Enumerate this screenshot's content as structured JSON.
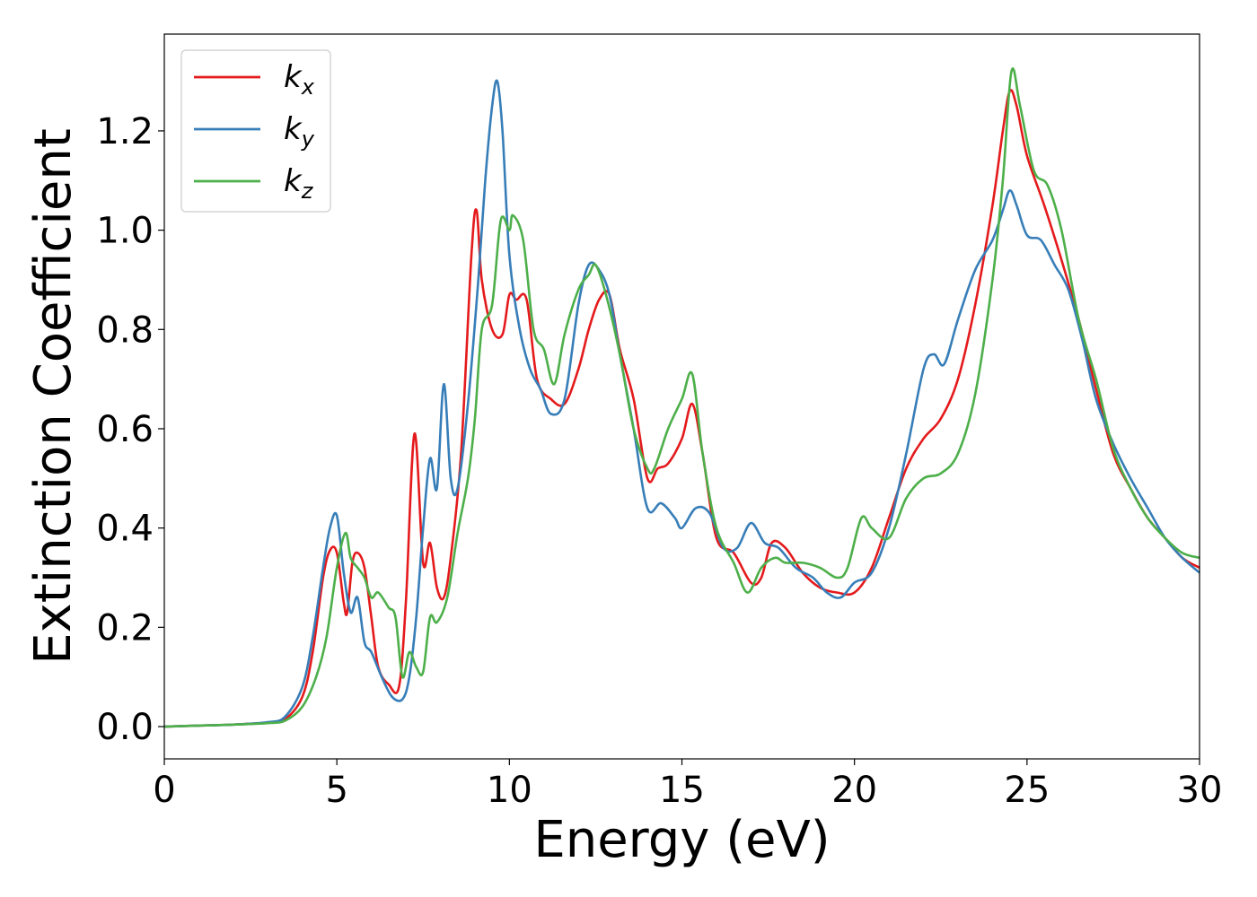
{
  "chart_data": {
    "type": "line",
    "xlabel": "Energy (eV)",
    "ylabel": "Extinction Coefficient",
    "xlim": [
      0,
      30
    ],
    "ylim": [
      -0.065,
      1.395
    ],
    "xticks": [
      0,
      5,
      10,
      15,
      20,
      25,
      30
    ],
    "xtick_labels": [
      "0",
      "5",
      "10",
      "15",
      "20",
      "25",
      "30"
    ],
    "yticks": [
      0.0,
      0.2,
      0.4,
      0.6,
      0.8,
      1.0,
      1.2
    ],
    "ytick_labels": [
      "0.0",
      "0.2",
      "0.4",
      "0.6",
      "0.8",
      "1.0",
      "1.2"
    ],
    "grid": false,
    "legend_position": "top-left",
    "series": [
      {
        "name": "k_x",
        "legend_base": "k",
        "legend_sub": "x",
        "color": "#e41a1c",
        "x": [
          0,
          1,
          2,
          3,
          3.5,
          4.0,
          4.3,
          4.6,
          4.8,
          5.0,
          5.2,
          5.3,
          5.45,
          5.6,
          5.8,
          6.0,
          6.2,
          6.5,
          6.8,
          7.0,
          7.25,
          7.5,
          7.7,
          7.9,
          8.1,
          8.3,
          8.6,
          8.9,
          9.05,
          9.2,
          9.5,
          9.8,
          10.0,
          10.2,
          10.5,
          10.8,
          11.2,
          11.6,
          12.0,
          12.3,
          12.6,
          12.9,
          13.2,
          13.6,
          14.0,
          14.3,
          14.6,
          15.0,
          15.3,
          15.6,
          16.0,
          16.5,
          17.0,
          17.3,
          17.6,
          18.0,
          18.5,
          19.0,
          19.5,
          20.0,
          20.5,
          21.0,
          21.5,
          22.0,
          22.5,
          23.0,
          23.5,
          24.0,
          24.3,
          24.5,
          24.7,
          25.0,
          25.5,
          26.0,
          26.5,
          27.0,
          27.5,
          28.0,
          28.5,
          29.0,
          29.5,
          30.0
        ],
        "y": [
          0,
          0.002,
          0.004,
          0.008,
          0.015,
          0.06,
          0.15,
          0.3,
          0.355,
          0.35,
          0.25,
          0.23,
          0.33,
          0.35,
          0.32,
          0.22,
          0.12,
          0.085,
          0.08,
          0.25,
          0.59,
          0.33,
          0.37,
          0.28,
          0.26,
          0.34,
          0.55,
          0.95,
          1.04,
          0.9,
          0.8,
          0.79,
          0.87,
          0.86,
          0.86,
          0.7,
          0.66,
          0.65,
          0.72,
          0.8,
          0.86,
          0.87,
          0.76,
          0.66,
          0.5,
          0.52,
          0.53,
          0.58,
          0.65,
          0.55,
          0.38,
          0.35,
          0.29,
          0.3,
          0.37,
          0.36,
          0.31,
          0.28,
          0.27,
          0.27,
          0.32,
          0.42,
          0.52,
          0.58,
          0.62,
          0.7,
          0.85,
          1.05,
          1.2,
          1.28,
          1.25,
          1.15,
          1.05,
          0.94,
          0.82,
          0.68,
          0.55,
          0.48,
          0.42,
          0.38,
          0.34,
          0.32
        ]
      },
      {
        "name": "k_y",
        "legend_base": "k",
        "legend_sub": "y",
        "color": "#377eb8",
        "x": [
          0,
          1,
          2,
          3,
          3.5,
          4.0,
          4.3,
          4.6,
          4.8,
          5.0,
          5.2,
          5.4,
          5.6,
          5.8,
          6.0,
          6.3,
          6.6,
          6.9,
          7.1,
          7.3,
          7.5,
          7.7,
          7.9,
          8.1,
          8.3,
          8.5,
          8.8,
          9.1,
          9.3,
          9.5,
          9.65,
          9.8,
          10.0,
          10.3,
          10.6,
          10.9,
          11.2,
          11.6,
          12.0,
          12.3,
          12.6,
          12.9,
          13.2,
          13.6,
          14.0,
          14.4,
          14.8,
          15.0,
          15.4,
          15.8,
          16.2,
          16.6,
          17.0,
          17.4,
          17.8,
          18.3,
          18.8,
          19.2,
          19.6,
          20.0,
          20.5,
          21.0,
          21.5,
          22.0,
          22.3,
          22.6,
          23.0,
          23.5,
          24.0,
          24.3,
          24.5,
          24.7,
          25.0,
          25.4,
          25.8,
          26.2,
          26.6,
          27.0,
          27.5,
          28.0,
          28.5,
          29.0,
          29.5,
          30.0
        ],
        "y": [
          0,
          0.002,
          0.004,
          0.009,
          0.02,
          0.08,
          0.18,
          0.32,
          0.4,
          0.425,
          0.31,
          0.23,
          0.26,
          0.17,
          0.15,
          0.1,
          0.06,
          0.055,
          0.1,
          0.22,
          0.4,
          0.54,
          0.48,
          0.69,
          0.5,
          0.48,
          0.65,
          0.9,
          1.1,
          1.25,
          1.3,
          1.2,
          0.95,
          0.8,
          0.72,
          0.68,
          0.63,
          0.66,
          0.85,
          0.93,
          0.92,
          0.87,
          0.75,
          0.6,
          0.44,
          0.45,
          0.42,
          0.4,
          0.44,
          0.43,
          0.36,
          0.36,
          0.41,
          0.37,
          0.36,
          0.32,
          0.3,
          0.27,
          0.26,
          0.29,
          0.31,
          0.4,
          0.55,
          0.72,
          0.75,
          0.73,
          0.82,
          0.92,
          0.98,
          1.04,
          1.08,
          1.05,
          0.99,
          0.98,
          0.93,
          0.88,
          0.78,
          0.66,
          0.57,
          0.5,
          0.44,
          0.38,
          0.34,
          0.31
        ]
      },
      {
        "name": "k_z",
        "legend_base": "k",
        "legend_sub": "z",
        "color": "#4daf4a",
        "x": [
          0,
          1,
          2,
          3,
          3.5,
          4.0,
          4.4,
          4.7,
          5.0,
          5.25,
          5.4,
          5.6,
          5.8,
          6.0,
          6.2,
          6.5,
          6.7,
          6.9,
          7.1,
          7.3,
          7.5,
          7.7,
          7.9,
          8.2,
          8.5,
          8.8,
          9.0,
          9.2,
          9.5,
          9.75,
          10.0,
          10.1,
          10.4,
          10.7,
          11.0,
          11.3,
          11.6,
          12.0,
          12.3,
          12.5,
          12.8,
          13.2,
          13.6,
          14.0,
          14.2,
          14.6,
          15.0,
          15.3,
          15.6,
          16.0,
          16.5,
          16.9,
          17.3,
          17.7,
          18.0,
          18.5,
          19.0,
          19.5,
          19.8,
          20.2,
          20.5,
          21.0,
          21.5,
          22.0,
          22.5,
          23.0,
          23.5,
          24.0,
          24.3,
          24.55,
          24.8,
          25.2,
          25.6,
          26.0,
          26.5,
          27.0,
          27.5,
          28.0,
          28.5,
          29.0,
          29.5,
          30.0
        ],
        "y": [
          0,
          0.002,
          0.004,
          0.007,
          0.012,
          0.04,
          0.1,
          0.18,
          0.32,
          0.39,
          0.34,
          0.32,
          0.3,
          0.26,
          0.27,
          0.24,
          0.22,
          0.1,
          0.15,
          0.12,
          0.11,
          0.22,
          0.21,
          0.26,
          0.39,
          0.5,
          0.62,
          0.8,
          0.85,
          1.02,
          1.0,
          1.03,
          0.98,
          0.8,
          0.76,
          0.69,
          0.79,
          0.88,
          0.91,
          0.93,
          0.87,
          0.75,
          0.6,
          0.52,
          0.52,
          0.6,
          0.66,
          0.71,
          0.55,
          0.4,
          0.33,
          0.27,
          0.32,
          0.34,
          0.33,
          0.33,
          0.32,
          0.3,
          0.32,
          0.42,
          0.4,
          0.38,
          0.46,
          0.5,
          0.51,
          0.55,
          0.67,
          0.9,
          1.1,
          1.32,
          1.25,
          1.12,
          1.09,
          1.0,
          0.82,
          0.7,
          0.56,
          0.48,
          0.42,
          0.38,
          0.35,
          0.34
        ]
      }
    ]
  }
}
